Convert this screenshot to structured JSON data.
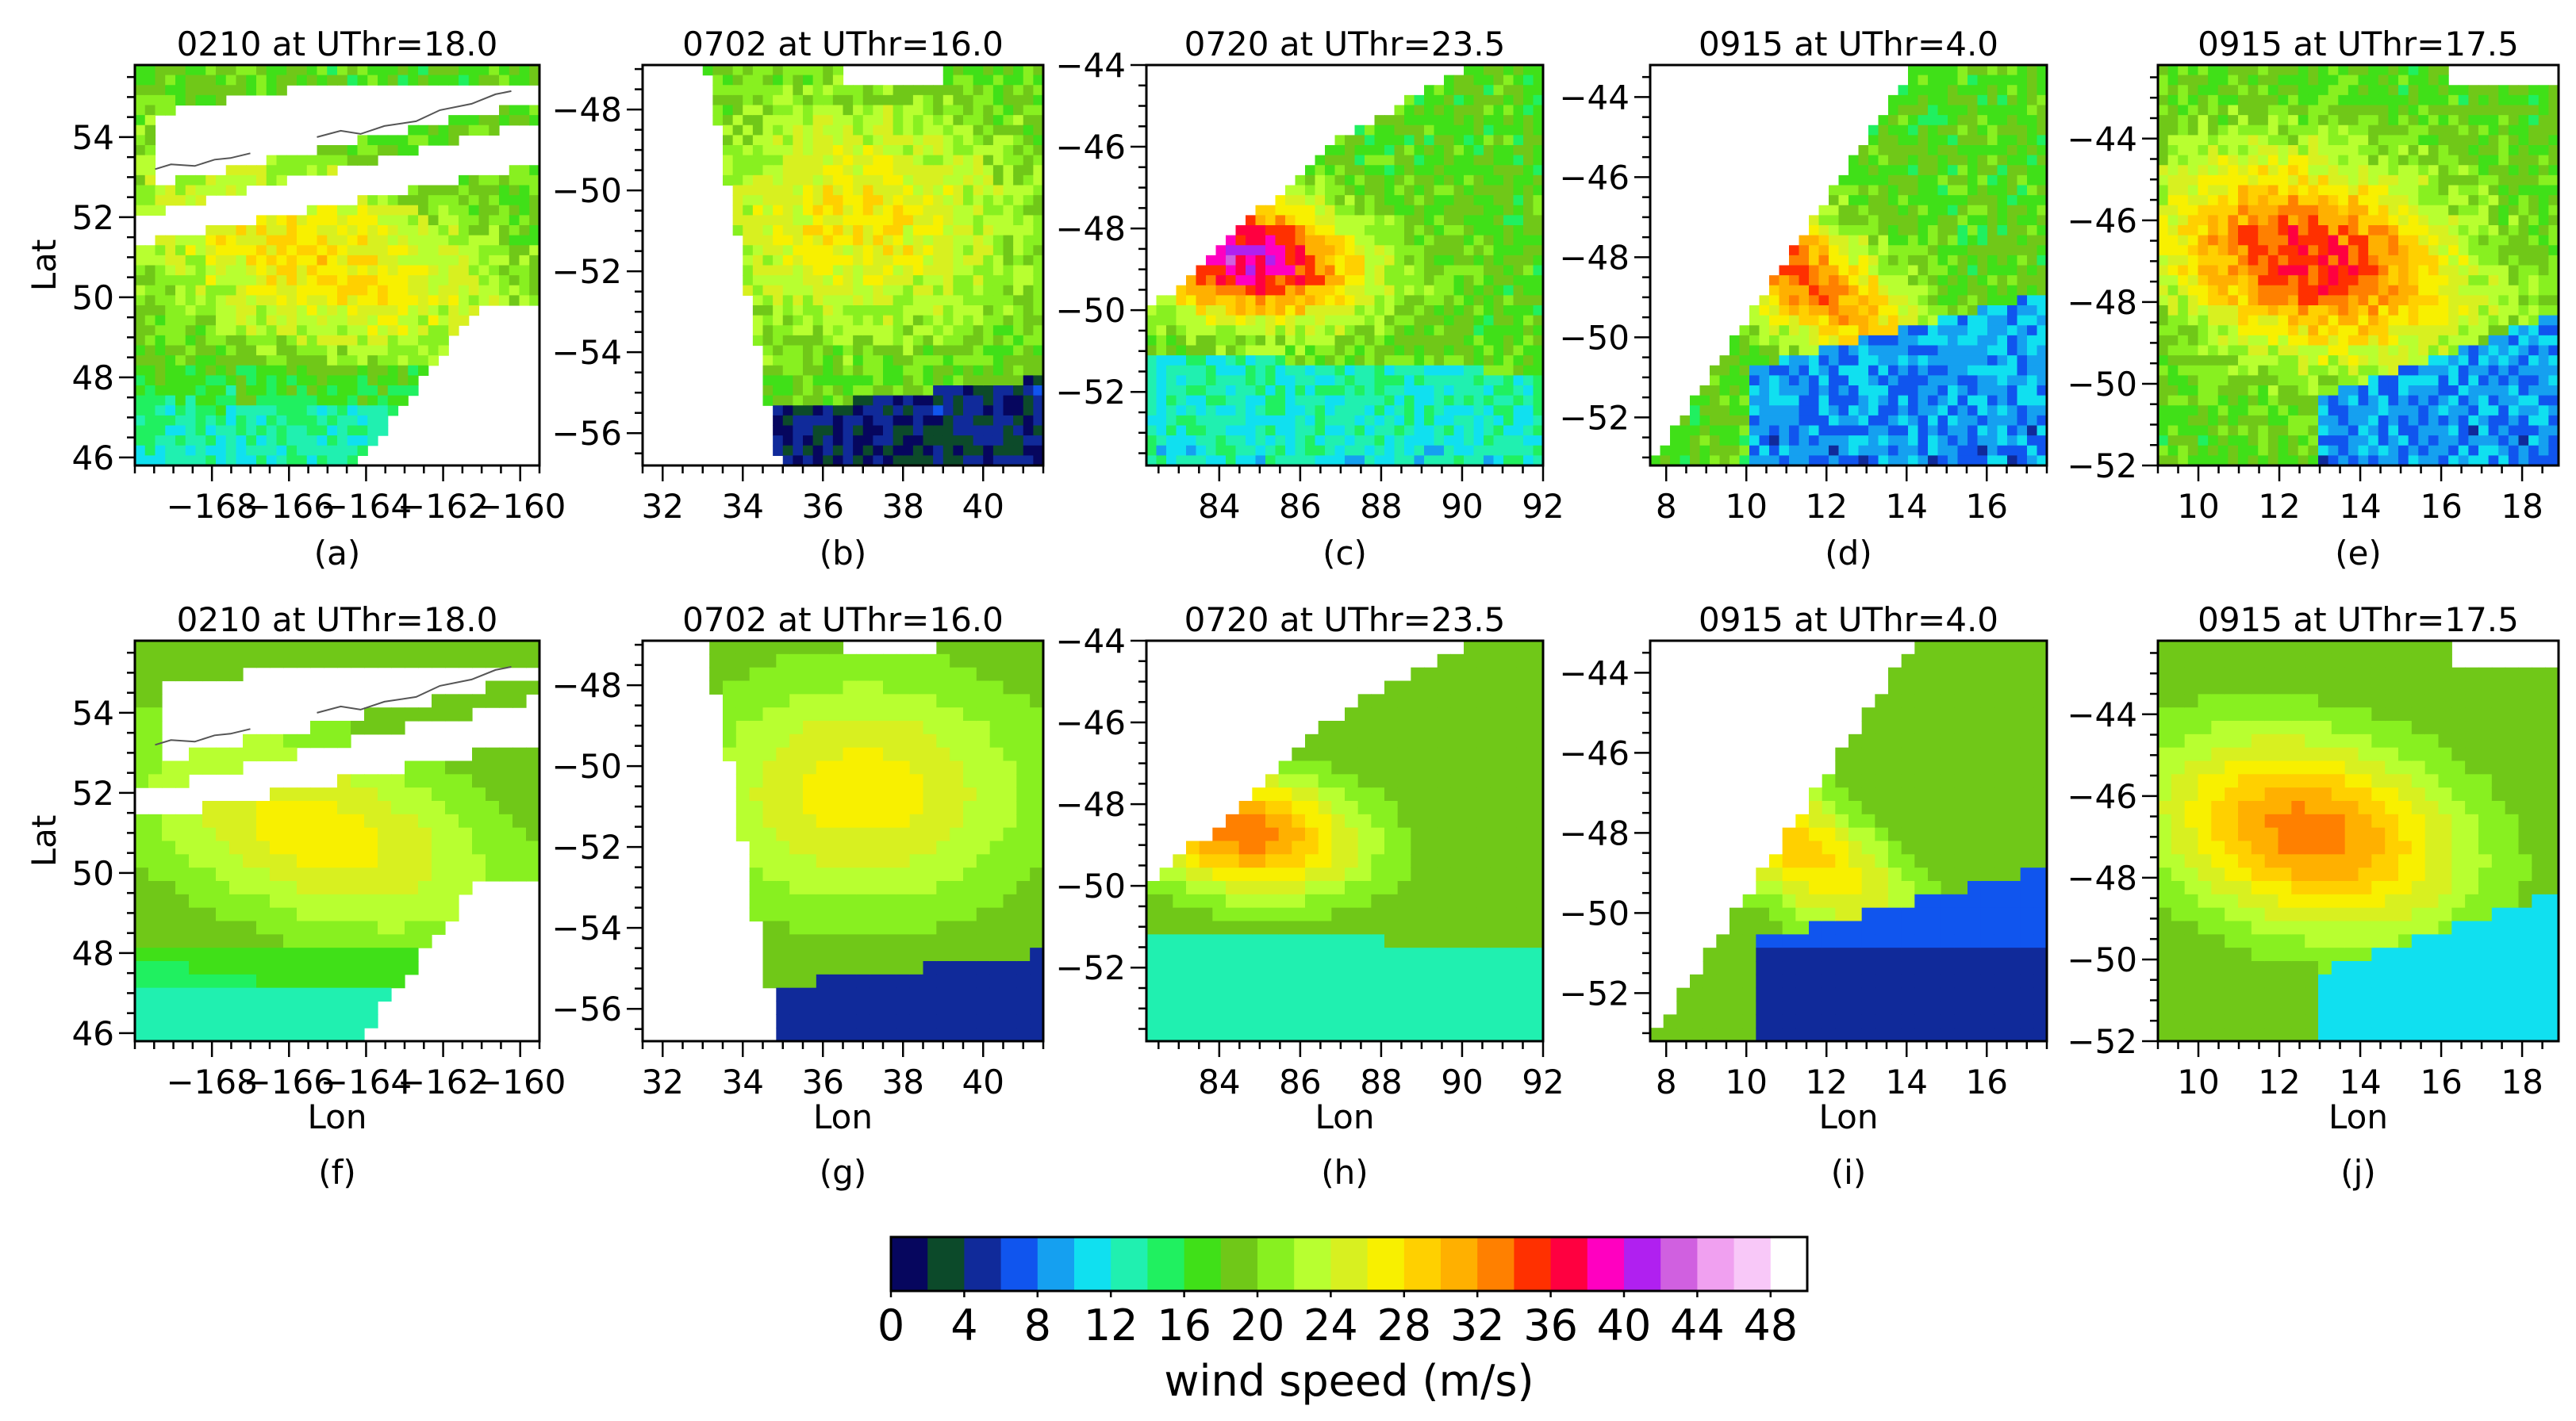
{
  "chart_data": {
    "type": "heatmap",
    "colorbar": {
      "label": "wind speed (m/s)",
      "ticks": [
        0,
        4,
        8,
        12,
        16,
        20,
        24,
        28,
        32,
        36,
        40,
        44,
        48
      ],
      "tick_labels": [
        "0",
        "4",
        "8",
        "12",
        "16",
        "20",
        "24",
        "28",
        "32",
        "36",
        "40",
        "44",
        "48"
      ],
      "range": [
        0,
        50
      ],
      "bin_width": 2,
      "colors": [
        "#06065e",
        "#0c4a2a",
        "#102a9a",
        "#1055ee",
        "#15a0f0",
        "#10e0f0",
        "#20f0b0",
        "#20f060",
        "#40e018",
        "#70c818",
        "#88f020",
        "#b8ff30",
        "#d8f020",
        "#f8f000",
        "#ffd000",
        "#ffb000",
        "#ff8000",
        "#ff3000",
        "#ff0040",
        "#ff00c0",
        "#b020f0",
        "#d060e0",
        "#f0a0f0",
        "#f8c8f8",
        "#ffffff"
      ]
    },
    "panels": [
      {
        "id": "a",
        "tag": "(a)",
        "title": "0210 at UThr=18.0",
        "row": "top",
        "ylabel": "Lat",
        "xlabel": "",
        "xlim": [
          -170,
          -159.5
        ],
        "ylim": [
          45.8,
          55.8
        ],
        "xticks": [
          -168,
          -166,
          -164,
          -162,
          -160
        ],
        "xtick_labels": [
          "−168",
          "−166",
          "−164",
          "−162",
          "−160"
        ],
        "yticks": [
          46,
          48,
          50,
          52,
          54
        ],
        "ytick_labels": [
          "46",
          "48",
          "50",
          "52",
          "54"
        ],
        "peak_speed_ms": 28,
        "low_speed_ms": 13
      },
      {
        "id": "b",
        "tag": "(b)",
        "title": "0702 at UThr=16.0",
        "row": "top",
        "ylabel": "",
        "xlabel": "",
        "xlim": [
          31.5,
          41.5
        ],
        "ylim": [
          -56.8,
          -46.9
        ],
        "xticks": [
          32,
          34,
          36,
          38,
          40
        ],
        "xtick_labels": [
          "32",
          "34",
          "36",
          "38",
          "40"
        ],
        "yticks": [
          -56,
          -54,
          -52,
          -50,
          -48
        ],
        "ytick_labels": [
          "−56",
          "−54",
          "−52",
          "−50",
          "−48"
        ],
        "peak_speed_ms": 27,
        "low_speed_ms": 3
      },
      {
        "id": "c",
        "tag": "(c)",
        "title": "0720 at UThr=23.5",
        "row": "top",
        "ylabel": "",
        "xlabel": "",
        "xlim": [
          82.2,
          92
        ],
        "ylim": [
          -53.8,
          -44
        ],
        "xticks": [
          84,
          86,
          88,
          90,
          92
        ],
        "xtick_labels": [
          "84",
          "86",
          "88",
          "90",
          "92"
        ],
        "yticks": [
          -52,
          -50,
          -48,
          -46,
          -44
        ],
        "ytick_labels": [
          "−52",
          "−50",
          "−48",
          "−46",
          "−44"
        ],
        "peak_speed_ms": 40,
        "low_speed_ms": 12
      },
      {
        "id": "d",
        "tag": "(d)",
        "title": "0915 at UThr=4.0",
        "row": "top",
        "ylabel": "",
        "xlabel": "",
        "xlim": [
          7.6,
          17.5
        ],
        "ylim": [
          -53.2,
          -43.2
        ],
        "xticks": [
          8,
          10,
          12,
          14,
          16
        ],
        "xtick_labels": [
          "8",
          "10",
          "12",
          "14",
          "16"
        ],
        "yticks": [
          -52,
          -50,
          -48,
          -46,
          -44
        ],
        "ytick_labels": [
          "−52",
          "−50",
          "−48",
          "−46",
          "−44"
        ],
        "peak_speed_ms": 34,
        "low_speed_ms": 8
      },
      {
        "id": "e",
        "tag": "(e)",
        "title": "0915 at UThr=17.5",
        "row": "top",
        "ylabel": "",
        "xlabel": "",
        "xlim": [
          9,
          18.9
        ],
        "ylim": [
          -52,
          -42.2
        ],
        "xticks": [
          10,
          12,
          14,
          16,
          18
        ],
        "xtick_labels": [
          "10",
          "12",
          "14",
          "16",
          "18"
        ],
        "yticks": [
          -52,
          -50,
          -48,
          -46,
          -44
        ],
        "ytick_labels": [
          "−52",
          "−50",
          "−48",
          "−46",
          "−44"
        ],
        "peak_speed_ms": 36,
        "low_speed_ms": 8
      },
      {
        "id": "f",
        "tag": "(f)",
        "title": "0210 at UThr=18.0",
        "row": "bottom",
        "ylabel": "Lat",
        "xlabel": "Lon",
        "xlim": [
          -170,
          -159.5
        ],
        "ylim": [
          45.8,
          55.8
        ],
        "xticks": [
          -168,
          -166,
          -164,
          -162,
          -160
        ],
        "xtick_labels": [
          "−168",
          "−166",
          "−164",
          "−162",
          "−160"
        ],
        "yticks": [
          46,
          48,
          50,
          52,
          54
        ],
        "ytick_labels": [
          "46",
          "48",
          "50",
          "52",
          "54"
        ],
        "peak_speed_ms": 27,
        "low_speed_ms": 13
      },
      {
        "id": "g",
        "tag": "(g)",
        "title": "0702 at UThr=16.0",
        "row": "bottom",
        "ylabel": "",
        "xlabel": "Lon",
        "xlim": [
          31.5,
          41.5
        ],
        "ylim": [
          -56.8,
          -46.9
        ],
        "xticks": [
          32,
          34,
          36,
          38,
          40
        ],
        "xtick_labels": [
          "32",
          "34",
          "36",
          "38",
          "40"
        ],
        "yticks": [
          -56,
          -54,
          -52,
          -50,
          -48
        ],
        "ytick_labels": [
          "−56",
          "−54",
          "−52",
          "−50",
          "−48"
        ],
        "peak_speed_ms": 27,
        "low_speed_ms": 4
      },
      {
        "id": "h",
        "tag": "(h)",
        "title": "0720 at UThr=23.5",
        "row": "bottom",
        "ylabel": "",
        "xlabel": "Lon",
        "xlim": [
          82.2,
          92
        ],
        "ylim": [
          -53.8,
          -44
        ],
        "xticks": [
          84,
          86,
          88,
          90,
          92
        ],
        "xtick_labels": [
          "84",
          "86",
          "88",
          "90",
          "92"
        ],
        "yticks": [
          -52,
          -50,
          -48,
          -46,
          -44
        ],
        "ytick_labels": [
          "−52",
          "−50",
          "−48",
          "−46",
          "−44"
        ],
        "peak_speed_ms": 33,
        "low_speed_ms": 12
      },
      {
        "id": "i",
        "tag": "(i)",
        "title": "0915 at UThr=4.0",
        "row": "bottom",
        "ylabel": "",
        "xlabel": "Lon",
        "xlim": [
          7.6,
          17.5
        ],
        "ylim": [
          -53.2,
          -43.2
        ],
        "xticks": [
          8,
          10,
          12,
          14,
          16
        ],
        "xtick_labels": [
          "8",
          "10",
          "12",
          "14",
          "16"
        ],
        "yticks": [
          -52,
          -50,
          -48,
          -46,
          -44
        ],
        "ytick_labels": [
          "−52",
          "−50",
          "−48",
          "−46",
          "−44"
        ],
        "peak_speed_ms": 29,
        "low_speed_ms": 5
      },
      {
        "id": "j",
        "tag": "(j)",
        "title": "0915 at UThr=17.5",
        "row": "bottom",
        "ylabel": "",
        "xlabel": "Lon",
        "xlim": [
          9,
          18.9
        ],
        "ylim": [
          -52,
          -42.2
        ],
        "xticks": [
          10,
          12,
          14,
          16,
          18
        ],
        "xtick_labels": [
          "10",
          "12",
          "14",
          "16",
          "18"
        ],
        "yticks": [
          -52,
          -50,
          -48,
          -46,
          -44
        ],
        "ytick_labels": [
          "−52",
          "−50",
          "−48",
          "−46",
          "−44"
        ],
        "peak_speed_ms": 33,
        "low_speed_ms": 10
      }
    ]
  }
}
